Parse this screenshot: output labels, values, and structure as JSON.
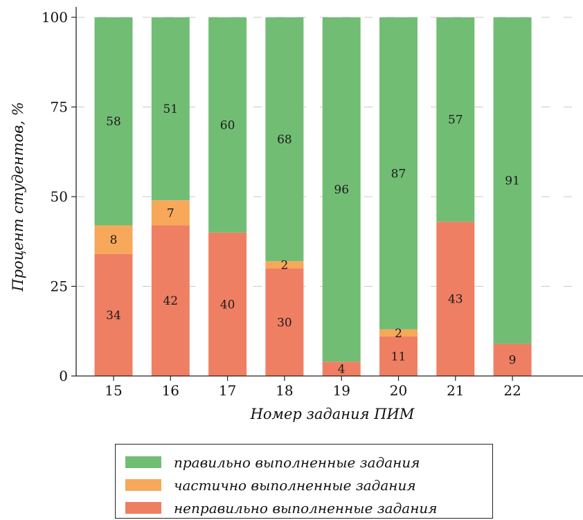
{
  "chart_data": {
    "type": "bar",
    "stacked": true,
    "xlabel": "Номер задания ПИМ",
    "ylabel": "Процент студентов, %",
    "ylim": [
      0,
      100
    ],
    "yticks": [
      0,
      25,
      50,
      75,
      100
    ],
    "categories": [
      "15",
      "16",
      "17",
      "18",
      "19",
      "20",
      "21",
      "22"
    ],
    "series": [
      {
        "name": "неправильно выполненные задания",
        "color": "#ef7f63",
        "values": [
          34,
          42,
          40,
          30,
          4,
          11,
          43,
          9
        ]
      },
      {
        "name": "частично выполненные задания",
        "color": "#f7a85a",
        "values": [
          8,
          7,
          0,
          2,
          0,
          2,
          0,
          0
        ]
      },
      {
        "name": "правильно выполненные задания",
        "color": "#72bd74",
        "values": [
          58,
          51,
          60,
          68,
          96,
          87,
          57,
          91
        ]
      }
    ],
    "grid": "horizontal dashed",
    "legend_position": "bottom"
  },
  "legend": {
    "items": [
      {
        "label": "правильно выполненные задания",
        "color": "#72bd74"
      },
      {
        "label": "частично выполненные задания",
        "color": "#f7a85a"
      },
      {
        "label": "неправильно выполненные задания",
        "color": "#ef7f63"
      }
    ]
  }
}
